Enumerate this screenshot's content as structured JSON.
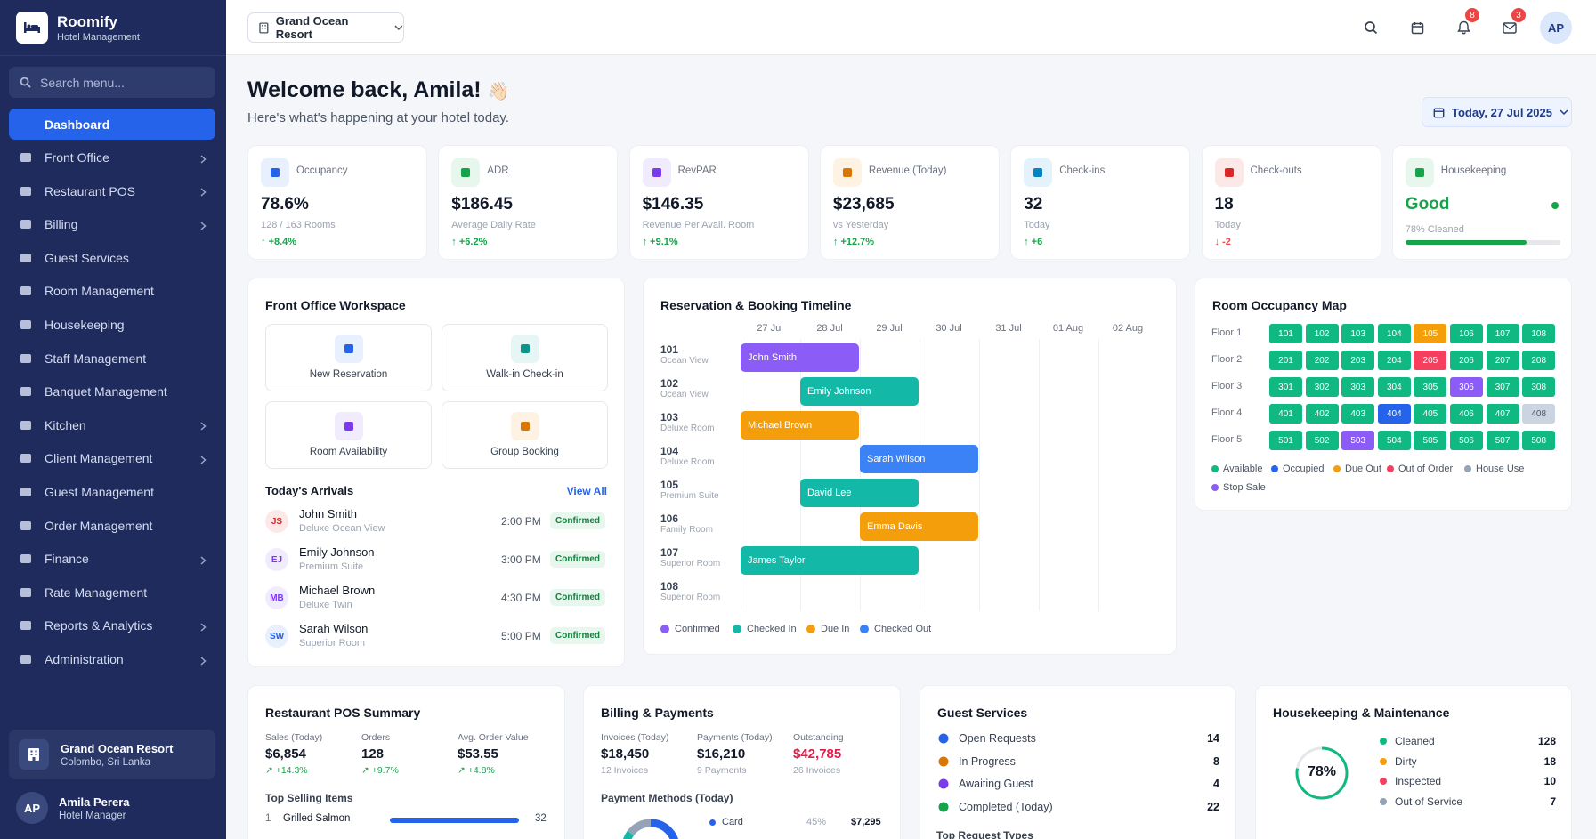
{
  "brand": {
    "name": "Roomify",
    "subtitle": "Hotel Management"
  },
  "sidebar": {
    "search_placeholder": "Search menu...",
    "items": [
      {
        "label": "Dashboard",
        "icon": "dashboard-icon",
        "active": true,
        "chevron": false
      },
      {
        "label": "Front Office",
        "icon": "building-icon",
        "chevron": true
      },
      {
        "label": "Restaurant POS",
        "icon": "utensils-icon",
        "chevron": true
      },
      {
        "label": "Billing",
        "icon": "receipt-icon",
        "chevron": true
      },
      {
        "label": "Guest Services",
        "icon": "bell-service-icon",
        "chevron": false
      },
      {
        "label": "Room Management",
        "icon": "bed-icon",
        "chevron": false
      },
      {
        "label": "Housekeeping",
        "icon": "broom-icon",
        "chevron": false
      },
      {
        "label": "Staff Management",
        "icon": "users-cog-icon",
        "chevron": false
      },
      {
        "label": "Banquet Management",
        "icon": "banquet-icon",
        "chevron": false
      },
      {
        "label": "Kitchen",
        "icon": "kitchen-icon",
        "chevron": true
      },
      {
        "label": "Client Management",
        "icon": "handshake-icon",
        "chevron": true
      },
      {
        "label": "Guest Management",
        "icon": "users-icon",
        "chevron": false
      },
      {
        "label": "Order Management",
        "icon": "clipboard-icon",
        "chevron": false
      },
      {
        "label": "Finance",
        "icon": "bank-icon",
        "chevron": true
      },
      {
        "label": "Rate Management",
        "icon": "tag-icon",
        "chevron": false
      },
      {
        "label": "Reports & Analytics",
        "icon": "chart-pie-icon",
        "chevron": true
      },
      {
        "label": "Administration",
        "icon": "cogs-icon",
        "chevron": true
      }
    ],
    "hotel": {
      "name": "Grand Ocean Resort",
      "location": "Colombo, Sri Lanka"
    },
    "user": {
      "initials": "AP",
      "name": "Amila Perera",
      "role": "Hotel Manager"
    }
  },
  "topbar": {
    "hotel": "Grand Ocean Resort",
    "notifications": "8",
    "messages": "3",
    "avatar": "AP"
  },
  "header": {
    "welcome": "Welcome back, Amila!",
    "emoji": "👋🏻",
    "subtitle": "Here's what's happening at your hotel today.",
    "date": "Today, 27 Jul 2025"
  },
  "kpis": [
    {
      "label": "Occupancy",
      "value": "78.6%",
      "sub": "128 / 163 Rooms",
      "delta": "+8.4%",
      "dir": "up",
      "color": "#2563eb",
      "bg": "#e8f0fe",
      "icon": "bed-icon"
    },
    {
      "label": "ADR",
      "value": "$186.45",
      "sub": "Average Daily Rate",
      "delta": "+6.2%",
      "dir": "up",
      "color": "#16a34a",
      "bg": "#e7f7ee",
      "icon": "money-bag-icon"
    },
    {
      "label": "RevPAR",
      "value": "$146.35",
      "sub": "Revenue Per Avail. Room",
      "delta": "+9.1%",
      "dir": "up",
      "color": "#7c3aed",
      "bg": "#f1ebfe",
      "icon": "line-chart-icon"
    },
    {
      "label": "Revenue (Today)",
      "value": "$23,685",
      "sub": "vs Yesterday",
      "delta": "+12.7%",
      "dir": "up",
      "color": "#d97706",
      "bg": "#fef3e2",
      "icon": "coins-icon"
    },
    {
      "label": "Check-ins",
      "value": "32",
      "sub": "Today",
      "delta": "+6",
      "dir": "up",
      "color": "#0284c7",
      "bg": "#e4f3fb",
      "icon": "sign-in-icon"
    },
    {
      "label": "Check-outs",
      "value": "18",
      "sub": "Today",
      "delta": "-2",
      "dir": "down",
      "color": "#dc2626",
      "bg": "#fde8e8",
      "icon": "sign-out-icon"
    },
    {
      "label": "Housekeeping",
      "value": "Good",
      "sub": "78% Cleaned",
      "progress": 0.78,
      "color": "#16a34a",
      "bg": "#e7f7ee",
      "icon": "broom-icon"
    }
  ],
  "front_office": {
    "title": "Front Office Workspace",
    "actions": [
      {
        "label": "New Reservation",
        "color": "#2563eb",
        "bg": "#e8f0fe",
        "icon": "plus-square-icon"
      },
      {
        "label": "Walk-in Check-in",
        "color": "#0d9488",
        "bg": "#e6f6f4",
        "icon": "walking-icon"
      },
      {
        "label": "Room Availability",
        "color": "#7c3aed",
        "bg": "#f1ebfe",
        "icon": "door-icon"
      },
      {
        "label": "Group Booking",
        "color": "#d97706",
        "bg": "#fef3e2",
        "icon": "group-icon"
      }
    ],
    "arrivals_title": "Today's Arrivals",
    "view_all": "View All",
    "arrivals": [
      {
        "initials": "JS",
        "name": "John Smith",
        "room": "Deluxe Ocean View",
        "time": "2:00 PM",
        "status": "Confirmed",
        "color": "#dc2626",
        "bg": "#fde8e8"
      },
      {
        "initials": "EJ",
        "name": "Emily Johnson",
        "room": "Premium Suite",
        "time": "3:00 PM",
        "status": "Confirmed",
        "color": "#7c3aed",
        "bg": "#f1ebfe"
      },
      {
        "initials": "MB",
        "name": "Michael Brown",
        "room": "Deluxe Twin",
        "time": "4:30 PM",
        "status": "Confirmed",
        "color": "#7c3aed",
        "bg": "#f1ebfe"
      },
      {
        "initials": "SW",
        "name": "Sarah Wilson",
        "room": "Superior Room",
        "time": "5:00 PM",
        "status": "Confirmed",
        "color": "#2563eb",
        "bg": "#e8f0fe"
      }
    ]
  },
  "timeline": {
    "title": "Reservation & Booking Timeline",
    "dates": [
      "27 Jul",
      "28 Jul",
      "29 Jul",
      "30 Jul",
      "31 Jul",
      "01 Aug",
      "02 Aug"
    ],
    "rooms": [
      {
        "num": "101",
        "type": "Ocean View"
      },
      {
        "num": "102",
        "type": "Ocean View"
      },
      {
        "num": "103",
        "type": "Deluxe Room"
      },
      {
        "num": "104",
        "type": "Deluxe Room"
      },
      {
        "num": "105",
        "type": "Premium Suite"
      },
      {
        "num": "106",
        "type": "Family Room"
      },
      {
        "num": "107",
        "type": "Superior Room"
      },
      {
        "num": "108",
        "type": "Superior Room"
      }
    ],
    "bookings": [
      {
        "guest": "John Smith",
        "row": 0,
        "start": 0,
        "days": 2,
        "status": "Confirmed"
      },
      {
        "guest": "Emily Johnson",
        "row": 1,
        "start": 1,
        "days": 2,
        "status": "Checked In"
      },
      {
        "guest": "Michael Brown",
        "row": 2,
        "start": 0,
        "days": 2,
        "status": "Due In"
      },
      {
        "guest": "Sarah Wilson",
        "row": 3,
        "start": 2,
        "days": 2,
        "status": "Checked Out"
      },
      {
        "guest": "David Lee",
        "row": 4,
        "start": 1,
        "days": 2,
        "status": "Checked In"
      },
      {
        "guest": "Emma Davis",
        "row": 5,
        "start": 2,
        "days": 2,
        "status": "Due In"
      },
      {
        "guest": "James Taylor",
        "row": 6,
        "start": 0,
        "days": 3,
        "status": "Checked In"
      }
    ],
    "legend": [
      {
        "label": "Confirmed",
        "color": "#8b5cf6"
      },
      {
        "label": "Checked In",
        "color": "#14b8a6"
      },
      {
        "label": "Due In",
        "color": "#f59e0b"
      },
      {
        "label": "Checked Out",
        "color": "#3b82f6"
      }
    ]
  },
  "occupancy_map": {
    "title": "Room Occupancy Map",
    "floors": [
      {
        "label": "Floor 1",
        "rooms": [
          {
            "n": "101",
            "s": "available"
          },
          {
            "n": "102",
            "s": "available"
          },
          {
            "n": "103",
            "s": "available"
          },
          {
            "n": "104",
            "s": "available"
          },
          {
            "n": "105",
            "s": "due"
          },
          {
            "n": "106",
            "s": "available"
          },
          {
            "n": "107",
            "s": "available"
          },
          {
            "n": "108",
            "s": "available"
          }
        ]
      },
      {
        "label": "Floor 2",
        "rooms": [
          {
            "n": "201",
            "s": "available"
          },
          {
            "n": "202",
            "s": "available"
          },
          {
            "n": "203",
            "s": "available"
          },
          {
            "n": "204",
            "s": "available"
          },
          {
            "n": "205",
            "s": "ooo"
          },
          {
            "n": "206",
            "s": "available"
          },
          {
            "n": "207",
            "s": "available"
          },
          {
            "n": "208",
            "s": "available"
          }
        ]
      },
      {
        "label": "Floor 3",
        "rooms": [
          {
            "n": "301",
            "s": "available"
          },
          {
            "n": "302",
            "s": "available"
          },
          {
            "n": "303",
            "s": "available"
          },
          {
            "n": "304",
            "s": "available"
          },
          {
            "n": "305",
            "s": "available"
          },
          {
            "n": "306",
            "s": "stop"
          },
          {
            "n": "307",
            "s": "available"
          },
          {
            "n": "308",
            "s": "available"
          }
        ]
      },
      {
        "label": "Floor 4",
        "rooms": [
          {
            "n": "401",
            "s": "available"
          },
          {
            "n": "402",
            "s": "available"
          },
          {
            "n": "403",
            "s": "available"
          },
          {
            "n": "404",
            "s": "occupied"
          },
          {
            "n": "405",
            "s": "available"
          },
          {
            "n": "406",
            "s": "available"
          },
          {
            "n": "407",
            "s": "available"
          },
          {
            "n": "408",
            "s": "house"
          }
        ]
      },
      {
        "label": "Floor 5",
        "rooms": [
          {
            "n": "501",
            "s": "available"
          },
          {
            "n": "502",
            "s": "available"
          },
          {
            "n": "503",
            "s": "stop"
          },
          {
            "n": "504",
            "s": "available"
          },
          {
            "n": "505",
            "s": "available"
          },
          {
            "n": "506",
            "s": "available"
          },
          {
            "n": "507",
            "s": "available"
          },
          {
            "n": "508",
            "s": "available"
          }
        ]
      }
    ],
    "status_colors": {
      "available": "#10b981",
      "occupied": "#2563eb",
      "due": "#f59e0b",
      "ooo": "#f43f5e",
      "house": "#cbd5e1",
      "stop": "#8b5cf6"
    },
    "legend": [
      {
        "label": "Available",
        "color": "#10b981"
      },
      {
        "label": "Occupied",
        "color": "#2563eb"
      },
      {
        "label": "Due Out",
        "color": "#f59e0b"
      },
      {
        "label": "Out of Order",
        "color": "#f43f5e"
      },
      {
        "label": "House Use",
        "color": "#94a3b8"
      },
      {
        "label": "Stop Sale",
        "color": "#8b5cf6"
      }
    ]
  },
  "restaurant": {
    "title": "Restaurant POS Summary",
    "stats": [
      {
        "label": "Sales (Today)",
        "value": "$6,854",
        "delta": "↗ +14.3%"
      },
      {
        "label": "Orders",
        "value": "128",
        "delta": "↗ +9.7%"
      },
      {
        "label": "Avg. Order Value",
        "value": "$53.55",
        "delta": "↗ +4.8%"
      }
    ],
    "top_title": "Top Selling Items",
    "items": [
      {
        "rank": "1",
        "name": "Grilled Salmon",
        "qty": "32",
        "pct": 1.0
      }
    ]
  },
  "billing": {
    "title": "Billing & Payments",
    "stats": [
      {
        "label": "Invoices (Today)",
        "value": "$18,450",
        "sub": "12 Invoices"
      },
      {
        "label": "Payments (Today)",
        "value": "$16,210",
        "sub": "9 Payments"
      },
      {
        "label": "Outstanding",
        "value": "$42,785",
        "sub": "26 Invoices",
        "alert": true
      }
    ],
    "methods_title": "Payment Methods (Today)",
    "methods": [
      {
        "label": "Card",
        "pct": "45%",
        "amount": "$7,295",
        "color": "#2563eb"
      }
    ],
    "donut": [
      0.45,
      0.25,
      0.15,
      0.15
    ]
  },
  "guest_services": {
    "title": "Guest Services",
    "rows": [
      {
        "label": "Open Requests",
        "count": "14",
        "icon": "inbox-icon",
        "color": "#2563eb"
      },
      {
        "label": "In Progress",
        "count": "8",
        "icon": "hourglass-icon",
        "color": "#d97706"
      },
      {
        "label": "Awaiting Guest",
        "count": "4",
        "icon": "user-clock-icon",
        "color": "#7c3aed"
      },
      {
        "label": "Completed (Today)",
        "count": "22",
        "icon": "check-circle-icon",
        "color": "#16a34a"
      }
    ],
    "types_title": "Top Request Types"
  },
  "housekeeping": {
    "title": "Housekeeping & Maintenance",
    "percent": "78%",
    "ring": 0.78,
    "rows": [
      {
        "label": "Cleaned",
        "count": "128",
        "color": "#10b981"
      },
      {
        "label": "Dirty",
        "count": "18",
        "color": "#f59e0b"
      },
      {
        "label": "Inspected",
        "count": "10",
        "color": "#f43f5e"
      },
      {
        "label": "Out of Service",
        "count": "7",
        "color": "#94a3b8"
      }
    ]
  }
}
